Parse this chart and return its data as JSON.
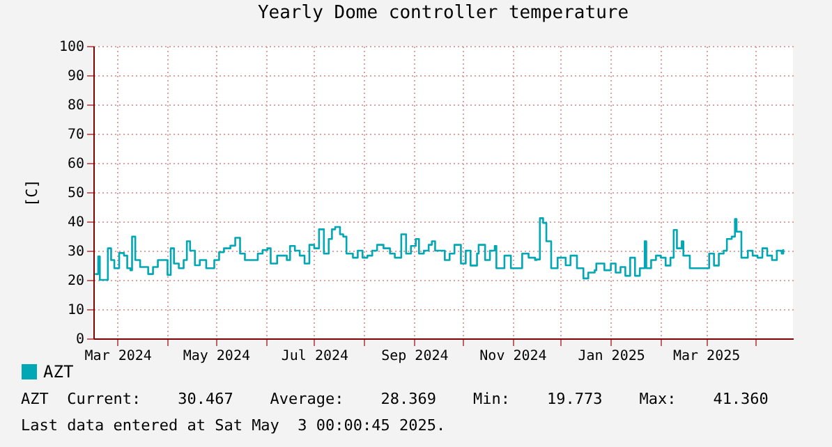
{
  "chart_data": {
    "type": "step",
    "title": "Yearly Dome controller temperature",
    "ylabel": "[C]",
    "x": [
      "2024-02-16",
      "2024-02-18",
      "2024-02-19",
      "2024-02-21",
      "2024-02-24",
      "2024-02-26",
      "2024-02-28",
      "2024-03-02",
      "2024-03-05",
      "2024-03-07",
      "2024-03-09",
      "2024-03-10",
      "2024-03-12",
      "2024-03-15",
      "2024-03-20",
      "2024-03-23",
      "2024-03-26",
      "2024-03-29",
      "2024-04-01",
      "2024-04-03",
      "2024-04-05",
      "2024-04-08",
      "2024-04-11",
      "2024-04-13",
      "2024-04-15",
      "2024-04-18",
      "2024-04-21",
      "2024-04-25",
      "2024-04-30",
      "2024-05-03",
      "2024-05-06",
      "2024-05-10",
      "2024-05-13",
      "2024-05-16",
      "2024-05-19",
      "2024-05-23",
      "2024-05-27",
      "2024-05-30",
      "2024-06-02",
      "2024-06-04",
      "2024-06-08",
      "2024-06-11",
      "2024-06-14",
      "2024-06-16",
      "2024-06-19",
      "2024-06-22",
      "2024-06-25",
      "2024-06-28",
      "2024-07-01",
      "2024-07-04",
      "2024-07-07",
      "2024-07-10",
      "2024-07-12",
      "2024-07-14",
      "2024-07-17",
      "2024-07-19",
      "2024-07-21",
      "2024-07-25",
      "2024-07-28",
      "2024-07-31",
      "2024-08-03",
      "2024-08-06",
      "2024-08-09",
      "2024-08-13",
      "2024-08-17",
      "2024-08-20",
      "2024-08-24",
      "2024-08-27",
      "2024-08-30",
      "2024-09-02",
      "2024-09-04",
      "2024-09-07",
      "2024-09-10",
      "2024-09-12",
      "2024-09-14",
      "2024-09-16",
      "2024-09-20",
      "2024-09-23",
      "2024-09-26",
      "2024-09-30",
      "2024-10-03",
      "2024-10-06",
      "2024-10-10",
      "2024-10-11",
      "2024-10-15",
      "2024-10-18",
      "2024-10-21",
      "2024-10-22",
      "2024-10-27",
      "2024-10-31",
      "2024-11-04",
      "2024-11-07",
      "2024-11-11",
      "2024-11-15",
      "2024-11-16",
      "2024-11-18",
      "2024-11-20",
      "2024-11-22",
      "2024-11-25",
      "2024-11-29",
      "2024-12-04",
      "2024-12-07",
      "2024-12-11",
      "2024-12-15",
      "2024-12-18",
      "2024-12-22",
      "2024-12-23",
      "2024-12-28",
      "2025-01-01",
      "2025-01-04",
      "2025-01-07",
      "2025-01-10",
      "2025-01-13",
      "2025-01-16",
      "2025-01-19",
      "2025-01-22",
      "2025-01-23",
      "2025-01-26",
      "2025-01-29",
      "2025-02-01",
      "2025-02-04",
      "2025-02-07",
      "2025-02-09",
      "2025-02-11",
      "2025-02-14",
      "2025-02-15",
      "2025-02-19",
      "2025-02-24",
      "2025-02-28",
      "2025-03-03",
      "2025-03-06",
      "2025-03-09",
      "2025-03-12",
      "2025-03-14",
      "2025-03-17",
      "2025-03-19",
      "2025-03-20",
      "2025-03-23",
      "2025-03-27",
      "2025-03-30",
      "2025-04-02",
      "2025-04-05",
      "2025-04-08",
      "2025-04-11",
      "2025-04-14",
      "2025-04-17",
      "2025-04-18"
    ],
    "series": [
      {
        "name": "AZT",
        "color": "#00a8b5",
        "values": [
          22,
          28,
          20,
          20,
          30.8,
          26.8,
          24,
          29.2,
          28.3,
          24,
          23.3,
          34.8,
          26.8,
          24.4,
          22,
          24.4,
          26.8,
          26.8,
          21.7,
          30.8,
          25.6,
          24,
          26.8,
          33.2,
          30,
          25,
          26.8,
          24,
          26.8,
          29.5,
          30.8,
          31.7,
          34.4,
          29,
          26.8,
          26.8,
          29,
          30.2,
          30.8,
          25.6,
          28.3,
          28.3,
          26.8,
          31.6,
          30,
          28.3,
          25.6,
          32,
          30.8,
          37.3,
          29,
          34,
          37.3,
          38.1,
          35.6,
          34.8,
          29,
          27.6,
          30,
          27.6,
          28.3,
          30,
          32,
          30.8,
          29,
          27.6,
          35.6,
          29,
          31.6,
          34,
          29,
          30,
          32,
          33.2,
          30,
          30,
          26.8,
          29,
          32,
          25.6,
          30,
          24.9,
          29,
          32,
          26.8,
          30,
          31.6,
          24,
          28.3,
          24,
          24,
          29,
          27.6,
          26.8,
          27,
          41.1,
          39.5,
          33.2,
          24,
          27.6,
          25,
          28.3,
          24,
          20.5,
          22.5,
          23.3,
          25.6,
          23.3,
          25.6,
          22.5,
          24.4,
          21.4,
          27.6,
          21.4,
          24,
          33.2,
          24,
          26.8,
          28.3,
          27.6,
          24.9,
          27.6,
          37.1,
          30.8,
          33.2,
          28.3,
          24,
          24,
          24,
          29,
          24.9,
          29,
          30,
          34,
          34.8,
          40.8,
          36.5,
          27.6,
          30,
          28.3,
          27.6,
          30.8,
          28.3,
          26.8,
          30,
          29,
          30.5
        ]
      }
    ],
    "xlim": [
      "2024-02-15",
      "2025-04-24"
    ],
    "xticks": [
      {
        "value": "2024-03-01",
        "label": "Mar 2024"
      },
      {
        "value": "2024-04-01",
        "label": null
      },
      {
        "value": "2024-05-01",
        "label": "May 2024"
      },
      {
        "value": "2024-06-01",
        "label": null
      },
      {
        "value": "2024-07-01",
        "label": "Jul 2024"
      },
      {
        "value": "2024-08-01",
        "label": null
      },
      {
        "value": "2024-09-01",
        "label": "Sep 2024"
      },
      {
        "value": "2024-10-01",
        "label": null
      },
      {
        "value": "2024-11-01",
        "label": "Nov 2024"
      },
      {
        "value": "2024-12-01",
        "label": null
      },
      {
        "value": "2025-01-01",
        "label": "Jan 2025"
      },
      {
        "value": "2025-02-01",
        "label": null
      },
      {
        "value": "2025-03-01",
        "label": "Mar 2025"
      },
      {
        "value": "2025-04-01",
        "label": null
      }
    ],
    "ylim": [
      0,
      100
    ],
    "yticks": [
      0,
      10,
      20,
      30,
      40,
      50,
      60,
      70,
      80,
      90,
      100
    ],
    "grid": true,
    "legend": "bottom left",
    "line_style": "solid",
    "annotations": [
      "AZT  Current:    30.467    Average:    28.369    Min:    19.773    Max:    41.360",
      "Last data entered at Sat May  3 00:00:45 2025."
    ]
  }
}
